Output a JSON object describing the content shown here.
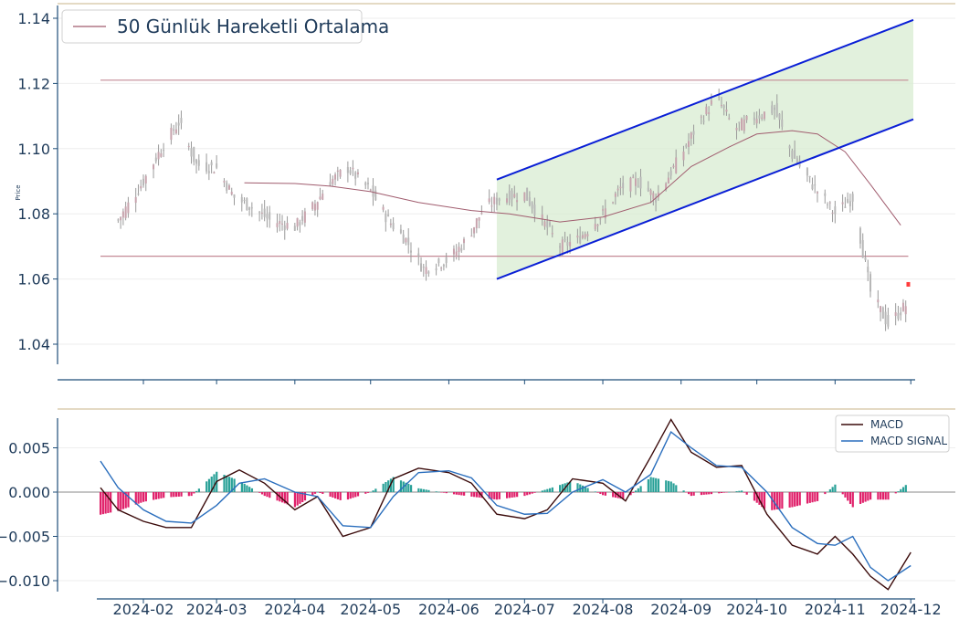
{
  "chart_data": [
    {
      "type": "candlestick",
      "ylabel": "Price",
      "ylim": [
        1.034,
        1.14
      ],
      "y_ticks": [
        1.04,
        1.06,
        1.08,
        1.1,
        1.12,
        1.14
      ],
      "y_tick_labels": [
        "1.04",
        "1.06",
        "1.08",
        "1.10",
        "1.12",
        "1.14"
      ],
      "legend": {
        "label": "50 Günlük Hareketli Ortalama",
        "position": "top-left"
      },
      "series": [
        {
          "name": "50 Günlük Hareketli Ortalama",
          "color": "#a05c6e",
          "x": [
            "2024-03-12",
            "2024-04-01",
            "2024-04-15",
            "2024-05-01",
            "2024-05-20",
            "2024-06-10",
            "2024-06-25",
            "2024-07-15",
            "2024-08-01",
            "2024-08-20",
            "2024-09-05",
            "2024-09-20",
            "2024-10-01",
            "2024-10-15",
            "2024-10-25",
            "2024-11-05",
            "2024-11-15",
            "2024-11-27"
          ],
          "values": [
            1.0895,
            1.0893,
            1.0885,
            1.0868,
            1.0835,
            1.081,
            1.08,
            1.0775,
            1.079,
            1.0835,
            1.0945,
            1.1005,
            1.1045,
            1.1055,
            1.1045,
            1.099,
            1.089,
            1.0765
          ]
        }
      ],
      "candles_close_approx": {
        "x": [
          "2024-01-22",
          "2024-02-01",
          "2024-02-08",
          "2024-02-15",
          "2024-02-22",
          "2024-03-01",
          "2024-03-08",
          "2024-03-15",
          "2024-03-22",
          "2024-04-01",
          "2024-04-08",
          "2024-04-15",
          "2024-04-22",
          "2024-05-01",
          "2024-05-08",
          "2024-05-15",
          "2024-05-22",
          "2024-06-01",
          "2024-06-08",
          "2024-06-15",
          "2024-06-22",
          "2024-07-01",
          "2024-07-08",
          "2024-07-15",
          "2024-07-22",
          "2024-08-01",
          "2024-08-08",
          "2024-08-15",
          "2024-08-22",
          "2024-09-01",
          "2024-09-08",
          "2024-09-15",
          "2024-09-22",
          "2024-10-01",
          "2024-10-08",
          "2024-10-15",
          "2024-10-22",
          "2024-11-01",
          "2024-11-08",
          "2024-11-15",
          "2024-11-22",
          "2024-11-29"
        ],
        "values": [
          1.078,
          1.09,
          1.1,
          1.108,
          1.095,
          1.094,
          1.085,
          1.082,
          1.078,
          1.076,
          1.082,
          1.09,
          1.094,
          1.087,
          1.078,
          1.072,
          1.063,
          1.066,
          1.072,
          1.082,
          1.085,
          1.086,
          1.078,
          1.07,
          1.072,
          1.08,
          1.088,
          1.09,
          1.085,
          1.098,
          1.108,
          1.116,
          1.106,
          1.11,
          1.112,
          1.098,
          1.09,
          1.08,
          1.085,
          1.056,
          1.046,
          1.052
        ]
      },
      "annotations": {
        "horizontal_lines": [
          1.121,
          1.067
        ],
        "channel_upper": {
          "from": [
            "2024-06-20",
            1.0905
          ],
          "to": [
            "2024-12-02",
            1.1395
          ]
        },
        "channel_lower": {
          "from": [
            "2024-06-20",
            1.06
          ],
          "to": [
            "2024-12-02",
            1.109
          ]
        },
        "last_price_marker": [
          "2024-11-30",
          1.0585
        ]
      }
    },
    {
      "type": "line+bar",
      "ylim": [
        -0.0111,
        0.0085
      ],
      "y_ticks": [
        -0.01,
        -0.005,
        0.0,
        0.005
      ],
      "y_tick_labels": [
        "−0.010",
        "−0.005",
        "0.000",
        "0.005"
      ],
      "x_tick_labels": [
        "2024-02",
        "2024-03",
        "2024-04",
        "2024-05",
        "2024-06",
        "2024-07",
        "2024-08",
        "2024-09",
        "2024-10",
        "2024-11",
        "2024-12"
      ],
      "legend_position": "top-right",
      "series": [
        {
          "name": "MACD",
          "color": "#3a0a0a",
          "x": [
            "2024-01-15",
            "2024-01-22",
            "2024-02-01",
            "2024-02-10",
            "2024-02-20",
            "2024-03-01",
            "2024-03-10",
            "2024-03-20",
            "2024-04-01",
            "2024-04-10",
            "2024-04-20",
            "2024-05-01",
            "2024-05-10",
            "2024-05-20",
            "2024-06-01",
            "2024-06-10",
            "2024-06-20",
            "2024-07-01",
            "2024-07-10",
            "2024-07-20",
            "2024-08-01",
            "2024-08-10",
            "2024-08-20",
            "2024-08-28",
            "2024-09-05",
            "2024-09-15",
            "2024-09-25",
            "2024-10-05",
            "2024-10-15",
            "2024-10-25",
            "2024-11-01",
            "2024-11-08",
            "2024-11-15",
            "2024-11-22",
            "2024-12-01"
          ],
          "values": [
            0.0005,
            -0.002,
            -0.0033,
            -0.004,
            -0.004,
            0.0012,
            0.0025,
            0.001,
            -0.002,
            -0.0005,
            -0.005,
            -0.004,
            0.0015,
            0.0027,
            0.0022,
            0.001,
            -0.0025,
            -0.003,
            -0.002,
            0.0015,
            0.001,
            -0.001,
            0.004,
            0.0082,
            0.0045,
            0.0028,
            0.003,
            -0.0025,
            -0.006,
            -0.007,
            -0.005,
            -0.007,
            -0.0095,
            -0.011,
            -0.0068
          ]
        },
        {
          "name": "MACD SIGNAL",
          "color": "#2a6ebd",
          "x": [
            "2024-01-15",
            "2024-01-22",
            "2024-02-01",
            "2024-02-10",
            "2024-02-20",
            "2024-03-01",
            "2024-03-10",
            "2024-03-20",
            "2024-04-01",
            "2024-04-10",
            "2024-04-20",
            "2024-05-01",
            "2024-05-10",
            "2024-05-20",
            "2024-06-01",
            "2024-06-10",
            "2024-06-20",
            "2024-07-01",
            "2024-07-10",
            "2024-07-20",
            "2024-08-01",
            "2024-08-10",
            "2024-08-20",
            "2024-08-28",
            "2024-09-05",
            "2024-09-15",
            "2024-09-25",
            "2024-10-05",
            "2024-10-15",
            "2024-10-25",
            "2024-11-01",
            "2024-11-08",
            "2024-11-15",
            "2024-11-22",
            "2024-12-01"
          ],
          "values": [
            0.0035,
            0.0005,
            -0.002,
            -0.0033,
            -0.0035,
            -0.0015,
            0.001,
            0.0015,
            0.0,
            -0.0005,
            -0.0038,
            -0.004,
            -0.0005,
            0.0022,
            0.0024,
            0.0016,
            -0.0015,
            -0.0025,
            -0.0024,
            0.0,
            0.0014,
            0.0,
            0.002,
            0.0068,
            0.005,
            0.003,
            0.0028,
            0.0,
            -0.004,
            -0.0058,
            -0.006,
            -0.005,
            -0.0085,
            -0.01,
            -0.0083
          ]
        }
      ],
      "histogram": {
        "positive_color": "#2aa198",
        "negative_color": "#e0206a"
      }
    }
  ]
}
